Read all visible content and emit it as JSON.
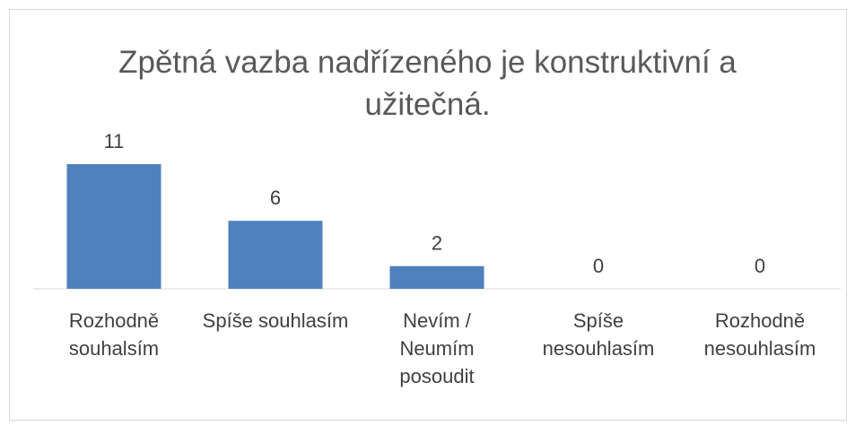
{
  "chart_data": {
    "type": "bar",
    "title": "Zpětná vazba nadřízeného je konstruktivní a užitečná.",
    "categories": [
      "Rozhodně souhalsím",
      "Spíše souhlasím",
      "Nevím / Neumím posoudit",
      "Spíše nesouhlasím",
      "Rozhodně nesouhlasím"
    ],
    "values": [
      11,
      6,
      2,
      0,
      0
    ],
    "color": "#4f81bd"
  }
}
